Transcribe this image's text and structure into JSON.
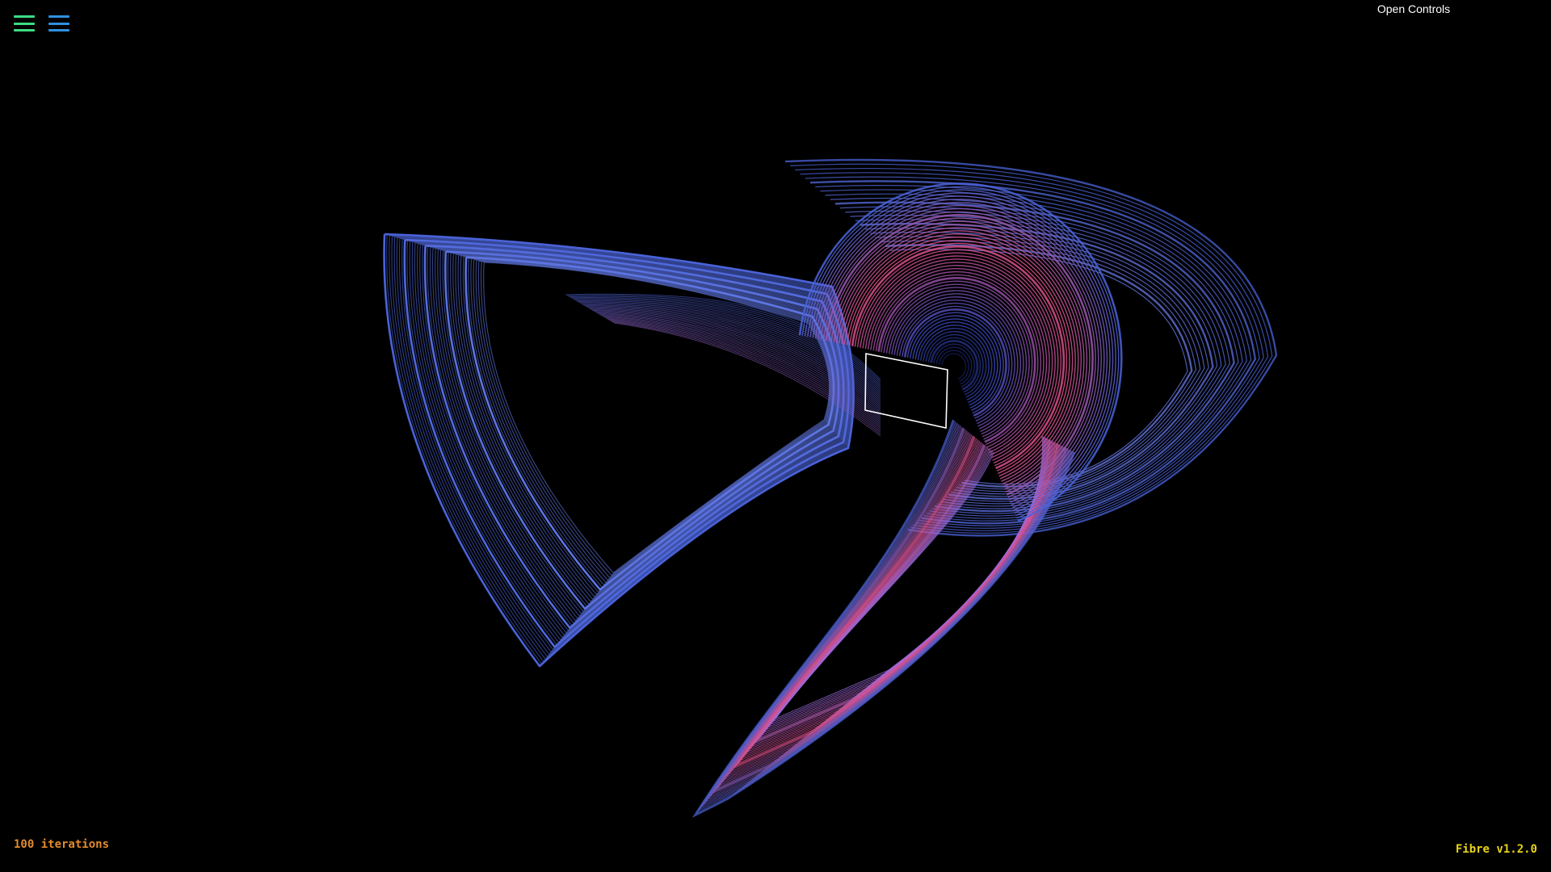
{
  "toolbar": {
    "menu_left_icon": "hamburger-menu-icon",
    "menu_right_icon": "hamburger-menu-icon",
    "menu_left_color": "#3ddc84",
    "menu_right_color": "#2f8fe0"
  },
  "controls": {
    "open_label": "Open Controls"
  },
  "status": {
    "iterations_label": "100 iterations",
    "iterations_color": "#e08a2a",
    "version_label": "Fibre v1.2.0",
    "version_color": "#e6d21a"
  },
  "scene": {
    "background": "#000000",
    "strand_blue": "#4a63d8",
    "strand_pink": "#e0508a",
    "selection_box_color": "#ffffff"
  }
}
